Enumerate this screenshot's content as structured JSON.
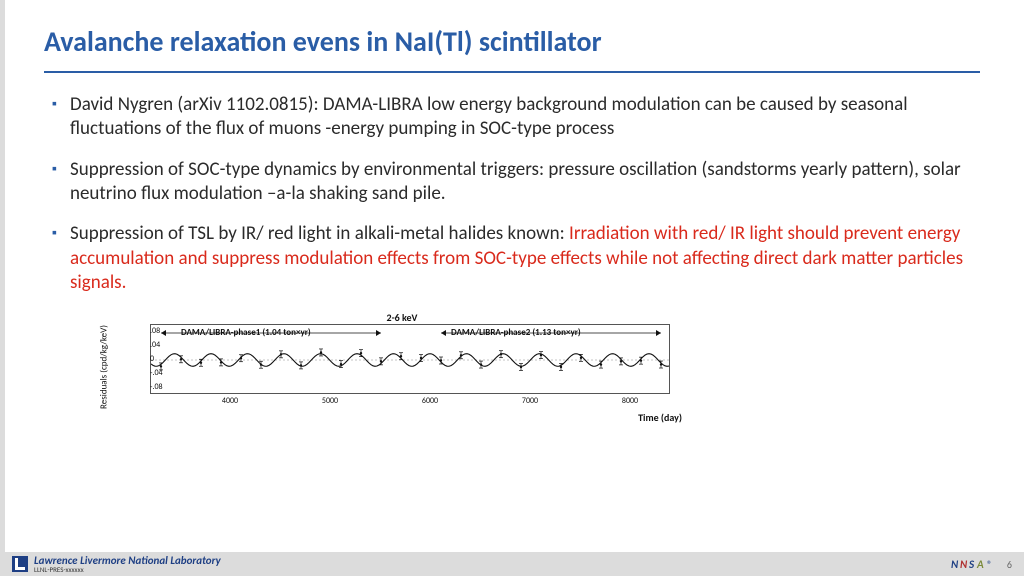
{
  "title": "Avalanche relaxation evens in  NaI(Tl) scintillator",
  "bullets": [
    {
      "text": "David Nygren (arXiv 1102.0815):  DAMA-LIBRA  low energy background modulation can be caused by seasonal fluctuations of the flux of muons -energy pumping in SOC-type process"
    },
    {
      "text": "Suppression of SOC-type dynamics by environmental triggers: pressure oscillation (sandstorms yearly pattern), solar neutrino flux modulation –a-la shaking sand pile."
    },
    {
      "text_black": "Suppression of TSL by IR/ red light in alkali-metal halides known:  ",
      "text_red": "Irradiation with red/ IR light should prevent energy accumulation and suppress modulation effects from SOC-type effects while not affecting direct dark matter particles signals."
    }
  ],
  "chart": {
    "type": "line",
    "caption": "2-6 keV",
    "y_label": "Residuals (cpd/kg/keV)",
    "x_label": "Time (day)",
    "phase1_label": "DAMA/LIBRA-phase1 (1.04 ton×yr)",
    "phase2_label": "DAMA/LIBRA-phase2 (1.13 ton×yr)",
    "xlim": [
      3200,
      8400
    ],
    "ylim": [
      -0.1,
      0.1
    ],
    "xticks": [
      4000,
      5000,
      6000,
      7000,
      8000
    ],
    "yticks": [
      -0.08,
      -0.04,
      0,
      0.04,
      0.08
    ],
    "amplitude": 0.018,
    "period_days": 365,
    "phase_offset": 150,
    "data_x": [
      3300,
      3500,
      3700,
      3900,
      4100,
      4300,
      4500,
      4700,
      4900,
      5100,
      5300,
      5500,
      5700,
      5900,
      6100,
      6300,
      6500,
      6700,
      6900,
      7100,
      7300,
      7500,
      7700,
      7900,
      8100,
      8300
    ],
    "data_err": 0.01,
    "colors": {
      "curve": "#000000",
      "axis": "#555555",
      "background": "#ffffff"
    }
  },
  "footer": {
    "lab_name": "Lawrence Livermore National Laboratory",
    "lab_sub": "LLNL-PRES-xxxxxx",
    "page": "6",
    "nnsa_text": "NNSA"
  }
}
